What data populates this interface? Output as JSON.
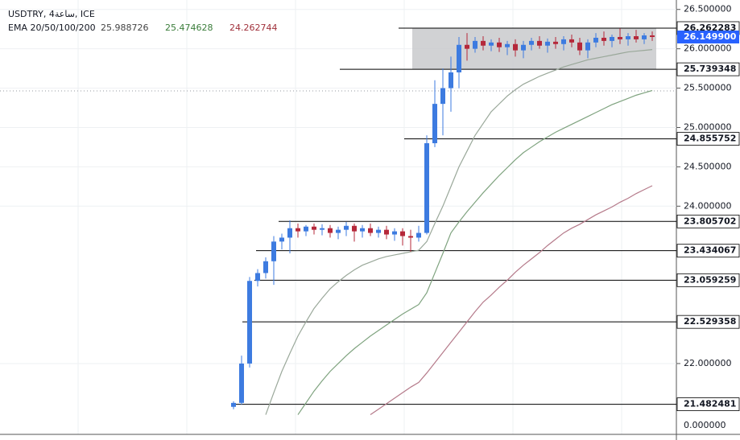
{
  "chart_data": {
    "type": "candlestick",
    "title": "USDTRY, 4ساعة, ICE",
    "indicator_label": "EMA 20/50/100/200",
    "indicator_values": [
      25.988726,
      25.474628,
      24.262744
    ],
    "indicator_value_colors": [
      "#444444",
      "#3a7d3a",
      "#a0303a"
    ],
    "up_color": "#3d7be0",
    "down_color": "#b5283a",
    "open": [
      21.45,
      21.5,
      22.0,
      23.05,
      23.15,
      23.3,
      23.55,
      23.6,
      23.72,
      23.68,
      23.74,
      23.7,
      23.72,
      23.66,
      23.7,
      23.75,
      23.68,
      23.72,
      23.66,
      23.7,
      23.64,
      23.68,
      23.62,
      23.6,
      23.66,
      24.8,
      25.3,
      25.5,
      25.7,
      26.05,
      26.0,
      26.1,
      26.04,
      26.08,
      26.02,
      26.06,
      25.98,
      26.05,
      26.1,
      26.04,
      26.09,
      26.06,
      26.12,
      26.08,
      25.98,
      26.08,
      26.14,
      26.1,
      26.15,
      26.12,
      26.16,
      26.12,
      26.17
    ],
    "high": [
      21.52,
      22.1,
      23.1,
      23.2,
      23.35,
      23.62,
      23.65,
      23.82,
      23.78,
      23.76,
      23.78,
      23.77,
      23.76,
      23.74,
      23.8,
      23.78,
      23.76,
      23.78,
      23.74,
      23.75,
      23.72,
      23.72,
      23.7,
      23.75,
      24.9,
      25.6,
      25.75,
      25.9,
      26.15,
      26.2,
      26.15,
      26.16,
      26.12,
      26.14,
      26.1,
      26.12,
      26.1,
      26.14,
      26.16,
      26.13,
      26.15,
      26.16,
      26.18,
      26.14,
      26.12,
      26.2,
      26.22,
      26.18,
      26.26,
      26.2,
      26.24,
      26.2,
      26.22
    ],
    "low": [
      21.42,
      21.48,
      21.95,
      22.98,
      23.08,
      23.0,
      23.45,
      23.4,
      23.6,
      23.62,
      23.64,
      23.63,
      23.6,
      23.58,
      23.62,
      23.55,
      23.6,
      23.62,
      23.6,
      23.58,
      23.56,
      23.5,
      23.42,
      23.55,
      23.64,
      24.75,
      24.9,
      25.2,
      25.5,
      25.85,
      25.95,
      25.98,
      25.97,
      25.96,
      25.92,
      25.9,
      25.88,
      25.98,
      26.0,
      25.95,
      26.0,
      25.98,
      26.02,
      25.92,
      25.88,
      26.02,
      26.04,
      26.02,
      26.06,
      26.04,
      26.08,
      26.06,
      26.1
    ],
    "close": [
      21.5,
      22.0,
      23.05,
      23.15,
      23.3,
      23.55,
      23.6,
      23.72,
      23.68,
      23.74,
      23.7,
      23.72,
      23.66,
      23.7,
      23.75,
      23.68,
      23.72,
      23.66,
      23.7,
      23.64,
      23.68,
      23.62,
      23.6,
      23.66,
      24.8,
      25.3,
      25.5,
      25.7,
      26.05,
      26.0,
      26.1,
      26.04,
      26.08,
      26.02,
      26.06,
      25.98,
      26.05,
      26.1,
      26.04,
      26.09,
      26.06,
      26.12,
      26.08,
      25.98,
      26.08,
      26.14,
      26.1,
      26.15,
      26.12,
      26.16,
      26.12,
      26.17,
      26.1499
    ],
    "series": [
      {
        "color": "#9aa89a",
        "values": [
          null,
          null,
          null,
          null,
          21.35,
          21.63,
          21.9,
          22.13,
          22.35,
          22.53,
          22.7,
          22.83,
          22.95,
          23.04,
          23.12,
          23.19,
          23.25,
          23.29,
          23.33,
          23.36,
          23.38,
          23.4,
          23.42,
          23.44,
          23.55,
          23.78,
          24.0,
          24.25,
          24.5,
          24.7,
          24.9,
          25.05,
          25.2,
          25.3,
          25.4,
          25.48,
          25.55,
          25.6,
          25.65,
          25.69,
          25.73,
          25.77,
          25.8,
          25.83,
          25.86,
          25.88,
          25.9,
          25.92,
          25.94,
          25.96,
          25.97,
          25.98,
          25.99
        ]
      },
      {
        "color": "#7fa37f",
        "values": [
          null,
          null,
          null,
          null,
          null,
          null,
          null,
          null,
          21.35,
          21.5,
          21.65,
          21.78,
          21.9,
          22.0,
          22.1,
          22.19,
          22.27,
          22.35,
          22.42,
          22.49,
          22.56,
          22.63,
          22.69,
          22.75,
          22.9,
          23.15,
          23.4,
          23.66,
          23.8,
          23.93,
          24.05,
          24.17,
          24.28,
          24.39,
          24.49,
          24.59,
          24.68,
          24.75,
          24.82,
          24.88,
          24.94,
          24.99,
          25.04,
          25.09,
          25.14,
          25.19,
          25.24,
          25.29,
          25.33,
          25.37,
          25.41,
          25.44,
          25.47
        ]
      },
      {
        "color": "#b57a8a",
        "values": [
          null,
          null,
          null,
          null,
          null,
          null,
          null,
          null,
          null,
          null,
          null,
          null,
          null,
          null,
          null,
          null,
          null,
          21.35,
          21.42,
          21.49,
          21.56,
          21.63,
          21.7,
          21.76,
          21.88,
          22.01,
          22.14,
          22.27,
          22.4,
          22.53,
          22.66,
          22.78,
          22.87,
          22.97,
          23.06,
          23.16,
          23.25,
          23.33,
          23.41,
          23.5,
          23.58,
          23.66,
          23.72,
          23.77,
          23.83,
          23.89,
          23.94,
          23.99,
          24.05,
          24.1,
          24.16,
          24.21,
          24.26
        ]
      }
    ],
    "ylim": [
      21.1,
      26.62
    ],
    "yticks": [
      {
        "value": 26.5,
        "label": "26.500000"
      },
      {
        "value": 26.0,
        "label": "26.000000"
      },
      {
        "value": 25.5,
        "label": "25.500000"
      },
      {
        "value": 25.0,
        "label": "25.000000"
      },
      {
        "value": 24.5,
        "label": "24.500000"
      },
      {
        "value": 24.0,
        "label": "24.000000"
      },
      {
        "value": 22.0,
        "label": "22.000000"
      }
    ],
    "extra_axis_label": "0.000000",
    "levels": [
      26.262283,
      25.739348,
      24.855752,
      23.805702,
      23.434067,
      23.059259,
      22.529358,
      21.482481
    ],
    "zone": [
      26.262283,
      25.739348
    ],
    "zone_color": "#c9cacd",
    "last_price": 26.1499,
    "last_price_label": "26.149900",
    "last_price_color": "#2962ff",
    "grid": true
  }
}
